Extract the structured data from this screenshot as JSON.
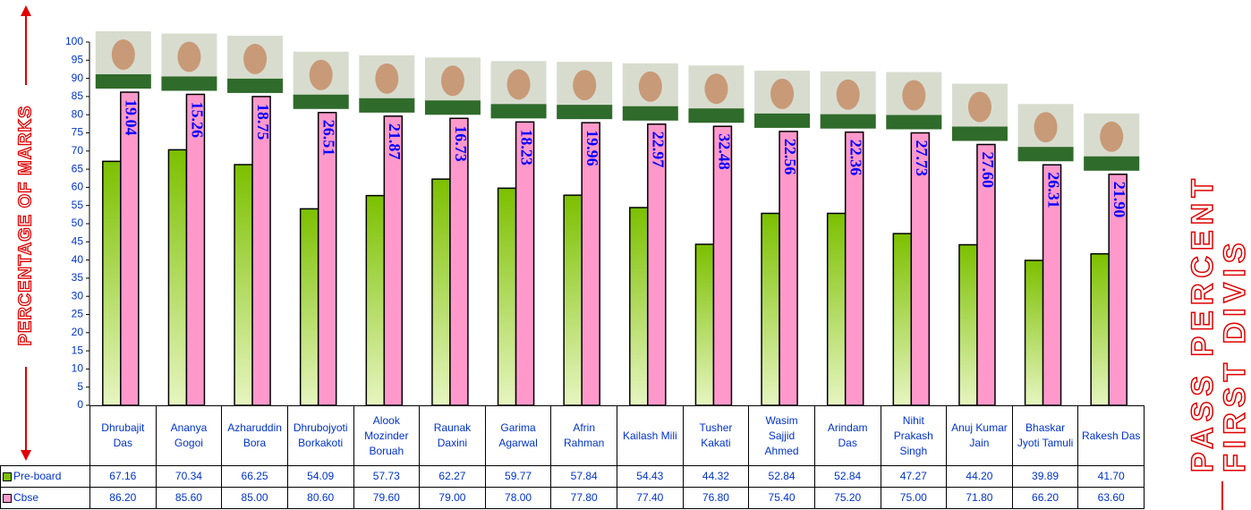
{
  "chart_data": {
    "type": "bar",
    "y_label": "PERCENTAGE OF MARKS",
    "side_texts": [
      "PASS PERCENT",
      "FIRST DIVIS"
    ],
    "categories": [
      "Dhrubajit Das",
      "Ananya Gogoi",
      "Azharuddin Bora",
      "Dhrubojyoti Borkakoti",
      "Alook Mozinder Boruah",
      "Raunak Daxini",
      "Garima Agarwal",
      "Afrin Rahman",
      "Kailash Mili",
      "Tusher Kakati",
      "Wasim Sajjid Ahmed",
      "Arindam Das",
      "Nihit Prakash Singh",
      "Anuj Kumar Jain",
      "Bhaskar Jyoti Tamuli",
      "Rakesh Das"
    ],
    "series": [
      {
        "name": "Pre-board",
        "color": "#7cc000",
        "values": [
          67.16,
          70.34,
          66.25,
          54.09,
          57.73,
          62.27,
          59.77,
          57.84,
          54.43,
          44.32,
          52.84,
          52.84,
          47.27,
          44.2,
          39.89,
          41.7
        ],
        "value_labels": [
          "67.16",
          "70.34",
          "66.25",
          "54.09",
          "57.73",
          "62.27",
          "59.77",
          "57.84",
          "54.43",
          "44.32",
          "52.84",
          "52.84",
          "47.27",
          "44.20",
          "39.89",
          "41.70"
        ]
      },
      {
        "name": "Cbse",
        "color": "#ff99cc",
        "values": [
          86.2,
          85.6,
          85.0,
          80.6,
          79.6,
          79.0,
          78.0,
          77.8,
          77.4,
          76.8,
          75.4,
          75.2,
          75.0,
          71.8,
          66.2,
          63.6
        ],
        "value_labels": [
          "86.20",
          "85.60",
          "85.00",
          "80.60",
          "79.60",
          "79.00",
          "78.00",
          "77.80",
          "77.40",
          "76.80",
          "75.40",
          "75.20",
          "75.00",
          "71.80",
          "66.20",
          "63.60"
        ]
      }
    ],
    "improvement_labels": [
      "19.04",
      "15.26",
      "18.75",
      "26.51",
      "21.87",
      "16.73",
      "18.23",
      "19.96",
      "22.97",
      "32.48",
      "22.56",
      "22.36",
      "27.73",
      "27.60",
      "26.31",
      "21.90"
    ],
    "ylim": [
      0,
      100
    ],
    "yticks": [
      0,
      5,
      10,
      15,
      20,
      25,
      30,
      35,
      40,
      45,
      50,
      55,
      60,
      65,
      70,
      75,
      80,
      85,
      90,
      95,
      100
    ]
  }
}
